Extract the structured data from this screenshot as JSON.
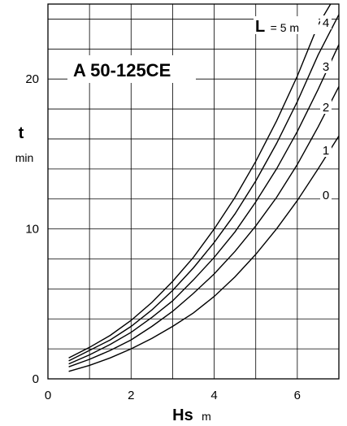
{
  "chart_data": {
    "type": "line",
    "title": "A 50-125CE",
    "xlabel": "Hs",
    "xunit": "m",
    "ylabel": "t",
    "yunit": "min",
    "xlim": [
      0,
      7
    ],
    "ylim": [
      0,
      25
    ],
    "x_ticks": [
      "0",
      "2",
      "4",
      "6"
    ],
    "y_ticks": [
      "0",
      "10",
      "20"
    ],
    "grid": true,
    "legend_symbol": "L",
    "legend_text": "= 5 m",
    "series": [
      {
        "name": "4",
        "x": [
          0.5,
          1,
          1.5,
          2,
          2.5,
          3,
          3.5,
          4,
          4.5,
          5,
          5.5,
          6,
          6.5,
          6.8
        ],
        "y": [
          1.4,
          2.1,
          2.9,
          3.9,
          5.1,
          6.5,
          8.1,
          10.0,
          12.1,
          14.5,
          17.2,
          20.2,
          23.6,
          25.0
        ]
      },
      {
        "name": "3",
        "x": [
          0.5,
          1,
          1.5,
          2,
          2.5,
          3,
          3.5,
          4,
          4.5,
          5,
          5.5,
          6,
          6.5,
          7.0
        ],
        "y": [
          1.2,
          1.9,
          2.6,
          3.5,
          4.6,
          5.9,
          7.4,
          9.1,
          11.0,
          13.2,
          15.7,
          18.5,
          21.6,
          24.3
        ]
      },
      {
        "name": "2",
        "x": [
          0.5,
          1,
          1.5,
          2,
          2.5,
          3,
          3.5,
          4,
          4.5,
          5,
          5.5,
          6,
          6.5,
          7.0
        ],
        "y": [
          1.0,
          1.6,
          2.3,
          3.1,
          4.1,
          5.2,
          6.6,
          8.1,
          9.8,
          11.8,
          14.0,
          16.5,
          19.3,
          22.3
        ]
      },
      {
        "name": "1",
        "x": [
          0.5,
          1,
          1.5,
          2,
          2.5,
          3,
          3.5,
          4,
          4.5,
          5,
          5.5,
          6,
          6.5,
          7.0
        ],
        "y": [
          0.8,
          1.3,
          1.9,
          2.6,
          3.5,
          4.5,
          5.7,
          7.0,
          8.5,
          10.2,
          12.1,
          14.3,
          16.8,
          19.5
        ]
      },
      {
        "name": "0",
        "x": [
          0.5,
          1,
          1.5,
          2,
          2.5,
          3,
          3.5,
          4,
          4.5,
          5,
          5.5,
          6,
          6.5,
          7.0
        ],
        "y": [
          0.5,
          0.9,
          1.4,
          2.0,
          2.7,
          3.5,
          4.4,
          5.5,
          6.8,
          8.3,
          10.0,
          11.9,
          14.0,
          16.2
        ]
      }
    ]
  }
}
